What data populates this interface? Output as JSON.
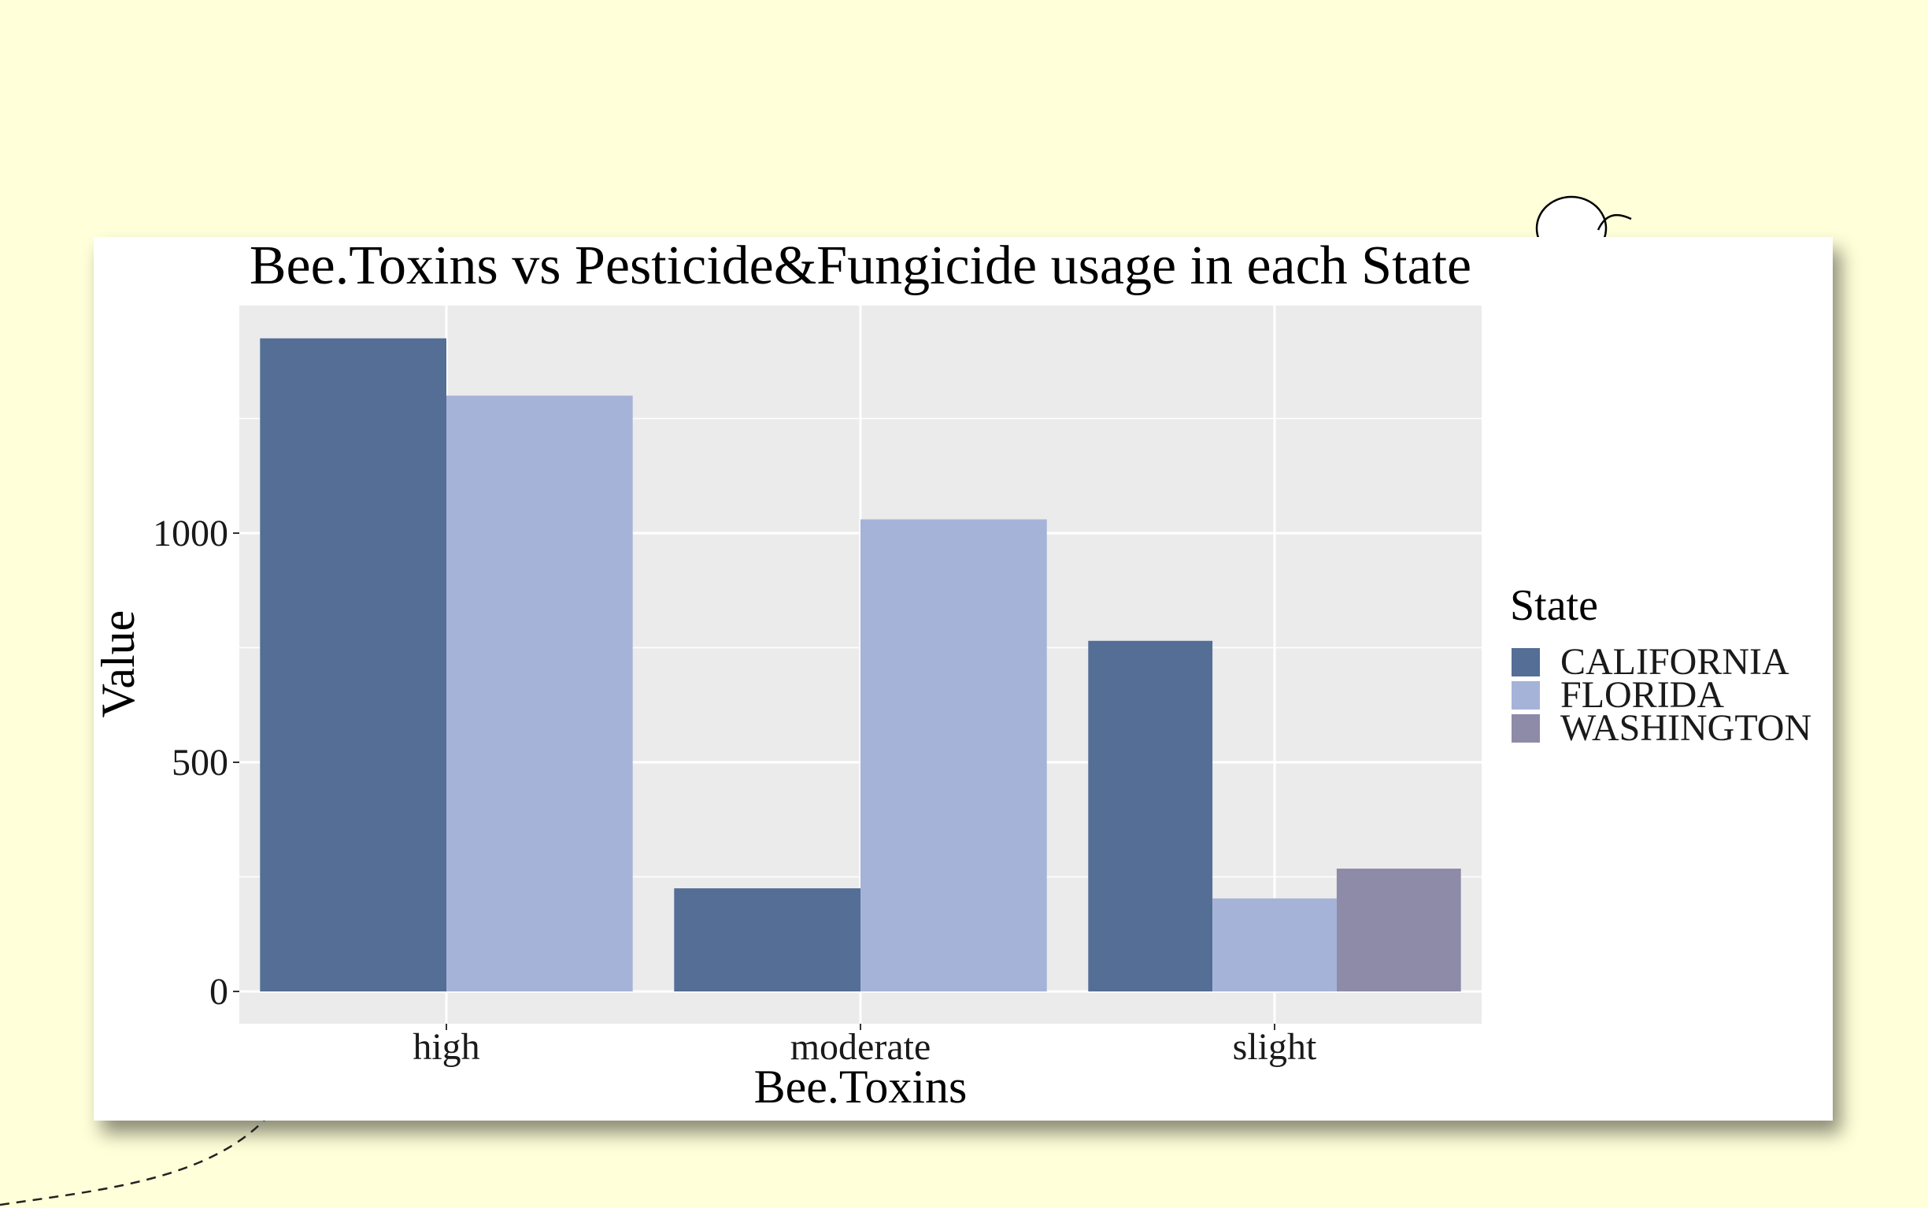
{
  "chart_data": {
    "type": "bar",
    "title": "Bee.Toxins vs Pesticide&Fungicide usage in each State",
    "xlabel": "Bee.Toxins",
    "ylabel": "Value",
    "categories": [
      "high",
      "moderate",
      "slight"
    ],
    "ylim": [
      0,
      1450
    ],
    "yticks": [
      0,
      500,
      1000
    ],
    "ytick_labels": [
      "0",
      "500",
      "1000"
    ],
    "grid": true,
    "legend": {
      "title": "State",
      "position": "right"
    },
    "series": [
      {
        "name": "CALIFORNIA",
        "color": "#546e96",
        "values": [
          1425,
          225,
          765
        ]
      },
      {
        "name": "FLORIDA",
        "color": "#a6b3d8",
        "values": [
          1300,
          1030,
          203
        ]
      },
      {
        "name": "WASHINGTON",
        "color": "#8e8ba8",
        "values": [
          null,
          null,
          268
        ]
      }
    ],
    "panel_color": "#ebebeb",
    "grid_color": "#ffffff"
  },
  "decor": {
    "bee_icon": "bee-icon",
    "flight_path": "dashed-flight-path"
  }
}
